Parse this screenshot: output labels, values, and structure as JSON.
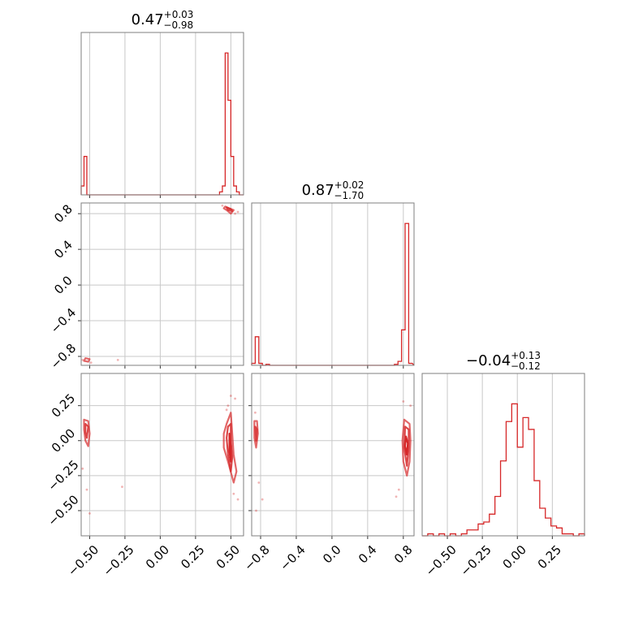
{
  "chart_data": {
    "type": "corner",
    "line_color": "#d62728",
    "grid": true,
    "parameters": [
      {
        "title": {
          "median": "0.47",
          "plus": "+0.03",
          "minus": "−0.98"
        },
        "range": [
          -0.56,
          0.59
        ],
        "ticks": [
          -0.5,
          -0.25,
          0.0,
          0.25,
          0.5
        ],
        "tick_labels": [
          "−0.50",
          "−0.25",
          "0.00",
          "0.25",
          "0.50"
        ],
        "hist": {
          "bins": [
            [
              -0.56,
              0.03
            ],
            [
              -0.54,
              0.13
            ],
            [
              -0.52,
              0.0
            ],
            [
              -0.5,
              0.0
            ],
            [
              -0.48,
              0.0
            ],
            [
              -0.46,
              0.0
            ],
            [
              -0.44,
              0.0
            ],
            [
              -0.42,
              0.0
            ],
            [
              -0.4,
              0.0
            ],
            [
              -0.38,
              0.0
            ],
            [
              -0.36,
              0.0
            ],
            [
              -0.34,
              0.0
            ],
            [
              -0.32,
              0.0
            ],
            [
              -0.3,
              0.0
            ],
            [
              -0.28,
              0.0
            ],
            [
              -0.26,
              0.0
            ],
            [
              -0.24,
              0.0
            ],
            [
              -0.22,
              0.0
            ],
            [
              -0.2,
              0.0
            ],
            [
              -0.18,
              0.0
            ],
            [
              -0.16,
              0.0
            ],
            [
              -0.14,
              0.0
            ],
            [
              -0.12,
              0.0
            ],
            [
              -0.1,
              0.0
            ],
            [
              -0.08,
              0.0
            ],
            [
              -0.06,
              0.0
            ],
            [
              -0.04,
              0.0
            ],
            [
              -0.02,
              0.0
            ],
            [
              0.0,
              0.0
            ],
            [
              0.02,
              0.0
            ],
            [
              0.04,
              0.0
            ],
            [
              0.06,
              0.0
            ],
            [
              0.08,
              0.0
            ],
            [
              0.1,
              0.0
            ],
            [
              0.12,
              0.0
            ],
            [
              0.14,
              0.0
            ],
            [
              0.16,
              0.0
            ],
            [
              0.18,
              0.0
            ],
            [
              0.2,
              0.0
            ],
            [
              0.22,
              0.0
            ],
            [
              0.24,
              0.0
            ],
            [
              0.26,
              0.0
            ],
            [
              0.28,
              0.0
            ],
            [
              0.3,
              0.0
            ],
            [
              0.32,
              0.0
            ],
            [
              0.34,
              0.0
            ],
            [
              0.36,
              0.0
            ],
            [
              0.38,
              0.0
            ],
            [
              0.4,
              0.0
            ],
            [
              0.42,
              0.01
            ],
            [
              0.44,
              0.03
            ],
            [
              0.46,
              0.48
            ],
            [
              0.48,
              0.32
            ],
            [
              0.5,
              0.13
            ],
            [
              0.52,
              0.03
            ],
            [
              0.54,
              0.01
            ],
            [
              0.56,
              0.0
            ],
            [
              0.58,
              0.0
            ]
          ],
          "bin_width": 0.02,
          "ymax": 0.5
        }
      },
      {
        "title": {
          "median": "0.87",
          "plus": "+0.02",
          "minus": "−1.70"
        },
        "range": [
          -0.9,
          0.92
        ],
        "ticks": [
          -0.8,
          -0.4,
          0.0,
          0.4,
          0.8
        ],
        "tick_labels": [
          "−0.8",
          "−0.4",
          "0.0",
          "0.4",
          "0.8"
        ],
        "hist": {
          "bins": [
            [
              -0.9,
              0.02
            ],
            [
              -0.86,
              0.29
            ],
            [
              -0.82,
              0.02
            ],
            [
              -0.78,
              0.0
            ],
            [
              -0.74,
              0.01
            ],
            [
              -0.7,
              0.0
            ],
            [
              -0.66,
              0.0
            ],
            [
              -0.62,
              0.0
            ],
            [
              -0.58,
              0.0
            ],
            [
              -0.54,
              0.0
            ],
            [
              -0.5,
              0.0
            ],
            [
              -0.46,
              0.0
            ],
            [
              -0.42,
              0.0
            ],
            [
              -0.38,
              0.0
            ],
            [
              -0.34,
              0.0
            ],
            [
              -0.3,
              0.0
            ],
            [
              -0.26,
              0.0
            ],
            [
              -0.22,
              0.0
            ],
            [
              -0.18,
              0.0
            ],
            [
              -0.14,
              0.0
            ],
            [
              -0.1,
              0.0
            ],
            [
              -0.06,
              0.0
            ],
            [
              -0.02,
              0.0
            ],
            [
              0.02,
              0.0
            ],
            [
              0.06,
              0.0
            ],
            [
              0.1,
              0.0
            ],
            [
              0.14,
              0.0
            ],
            [
              0.18,
              0.0
            ],
            [
              0.22,
              0.0
            ],
            [
              0.26,
              0.0
            ],
            [
              0.3,
              0.0
            ],
            [
              0.34,
              0.0
            ],
            [
              0.38,
              0.0
            ],
            [
              0.42,
              0.0
            ],
            [
              0.46,
              0.0
            ],
            [
              0.5,
              0.0
            ],
            [
              0.54,
              0.0
            ],
            [
              0.58,
              0.0
            ],
            [
              0.62,
              0.0
            ],
            [
              0.66,
              0.0
            ],
            [
              0.7,
              0.01
            ],
            [
              0.74,
              0.04
            ],
            [
              0.78,
              0.36
            ],
            [
              0.82,
              1.44
            ],
            [
              0.86,
              0.02
            ]
          ],
          "bin_width": 0.04,
          "ymax": 1.5
        }
      },
      {
        "title": {
          "median": "−0.04",
          "plus": "+0.13",
          "minus": "−0.12"
        },
        "range": [
          -0.68,
          0.48
        ],
        "ticks": [
          -0.5,
          -0.25,
          0.0,
          0.25
        ],
        "tick_labels": [
          "−0.50",
          "−0.25",
          "0.00",
          "0.25"
        ],
        "hist": {
          "bins": [
            [
              -0.68,
              0.0
            ],
            [
              -0.64,
              0.01
            ],
            [
              -0.6,
              0.0
            ],
            [
              -0.56,
              0.01
            ],
            [
              -0.52,
              0.0
            ],
            [
              -0.48,
              0.01
            ],
            [
              -0.44,
              0.0
            ],
            [
              -0.4,
              0.01
            ],
            [
              -0.36,
              0.03
            ],
            [
              -0.32,
              0.03
            ],
            [
              -0.28,
              0.06
            ],
            [
              -0.24,
              0.07
            ],
            [
              -0.2,
              0.11
            ],
            [
              -0.16,
              0.2
            ],
            [
              -0.12,
              0.38
            ],
            [
              -0.08,
              0.58
            ],
            [
              -0.04,
              0.67
            ],
            [
              0.0,
              0.45
            ],
            [
              0.04,
              0.6
            ],
            [
              0.08,
              0.54
            ],
            [
              0.12,
              0.28
            ],
            [
              0.16,
              0.14
            ],
            [
              0.2,
              0.09
            ],
            [
              0.24,
              0.05
            ],
            [
              0.28,
              0.04
            ],
            [
              0.32,
              0.01
            ],
            [
              0.36,
              0.01
            ],
            [
              0.4,
              0.0
            ],
            [
              0.44,
              0.01
            ]
          ],
          "bin_width": 0.04,
          "ymax": 0.75
        }
      }
    ],
    "pairs": [
      {
        "x_param": 0,
        "y_param": 1,
        "contours": [
          {
            "level": 1,
            "points": [
              [
                0.46,
                0.88
              ],
              [
                0.49,
                0.86
              ],
              [
                0.52,
                0.84
              ],
              [
                0.5,
                0.8
              ],
              [
                0.47,
                0.84
              ],
              [
                0.45,
                0.86
              ]
            ]
          },
          {
            "level": 2,
            "points": [
              [
                0.47,
                0.87
              ],
              [
                0.5,
                0.85
              ],
              [
                0.51,
                0.83
              ],
              [
                0.48,
                0.84
              ]
            ]
          },
          {
            "level": 1,
            "points": [
              [
                -0.53,
                -0.82
              ],
              [
                -0.5,
                -0.83
              ],
              [
                -0.51,
                -0.86
              ],
              [
                -0.54,
                -0.85
              ]
            ]
          }
        ],
        "scatter": [
          [
            0.44,
            0.89
          ],
          [
            0.53,
            0.8
          ],
          [
            0.55,
            0.82
          ],
          [
            -0.55,
            -0.84
          ],
          [
            -0.3,
            -0.84
          ],
          [
            -0.49,
            -0.87
          ]
        ]
      },
      {
        "x_param": 0,
        "y_param": 2,
        "contours": [
          {
            "level": 1,
            "points": [
              [
                -0.54,
                0.15
              ],
              [
                -0.51,
                0.14
              ],
              [
                -0.5,
                0.05
              ],
              [
                -0.51,
                -0.04
              ],
              [
                -0.53,
                0.0
              ],
              [
                -0.54,
                0.08
              ]
            ]
          },
          {
            "level": 2,
            "points": [
              [
                -0.53,
                0.12
              ],
              [
                -0.51,
                0.1
              ],
              [
                -0.52,
                0.02
              ],
              [
                -0.53,
                0.06
              ]
            ]
          },
          {
            "level": 1,
            "points": [
              [
                0.47,
                0.12
              ],
              [
                0.5,
                0.2
              ],
              [
                0.51,
                0.05
              ],
              [
                0.52,
                -0.1
              ],
              [
                0.54,
                -0.22
              ],
              [
                0.52,
                -0.3
              ],
              [
                0.48,
                -0.15
              ],
              [
                0.45,
                -0.05
              ],
              [
                0.45,
                0.05
              ]
            ]
          },
          {
            "level": 2,
            "points": [
              [
                0.48,
                0.1
              ],
              [
                0.5,
                0.12
              ],
              [
                0.5,
                0.0
              ],
              [
                0.51,
                -0.12
              ],
              [
                0.5,
                -0.22
              ],
              [
                0.48,
                -0.1
              ],
              [
                0.47,
                0.02
              ]
            ]
          },
          {
            "level": 3,
            "points": [
              [
                0.49,
                0.05
              ],
              [
                0.5,
                -0.05
              ],
              [
                0.5,
                -0.15
              ],
              [
                0.49,
                -0.08
              ]
            ]
          }
        ],
        "scatter": [
          [
            0.5,
            0.32
          ],
          [
            0.48,
            0.25
          ],
          [
            0.52,
            -0.38
          ],
          [
            0.55,
            -0.42
          ],
          [
            -0.55,
            -0.2
          ],
          [
            -0.52,
            -0.35
          ],
          [
            -0.5,
            -0.52
          ],
          [
            -0.27,
            -0.33
          ],
          [
            0.47,
            0.22
          ],
          [
            0.53,
            0.3
          ]
        ]
      },
      {
        "x_param": 1,
        "y_param": 2,
        "contours": [
          {
            "level": 1,
            "points": [
              [
                -0.87,
                0.14
              ],
              [
                -0.84,
                0.14
              ],
              [
                -0.83,
                0.05
              ],
              [
                -0.85,
                -0.05
              ],
              [
                -0.87,
                0.02
              ]
            ]
          },
          {
            "level": 2,
            "points": [
              [
                -0.86,
                0.1
              ],
              [
                -0.84,
                0.08
              ],
              [
                -0.85,
                0.0
              ]
            ]
          },
          {
            "level": 1,
            "points": [
              [
                0.81,
                0.15
              ],
              [
                0.87,
                0.12
              ],
              [
                0.88,
                0.0
              ],
              [
                0.87,
                -0.15
              ],
              [
                0.84,
                -0.25
              ],
              [
                0.8,
                -0.15
              ],
              [
                0.79,
                0.0
              ]
            ]
          },
          {
            "level": 2,
            "points": [
              [
                0.82,
                0.1
              ],
              [
                0.86,
                0.08
              ],
              [
                0.86,
                -0.05
              ],
              [
                0.84,
                -0.18
              ],
              [
                0.81,
                -0.05
              ]
            ]
          },
          {
            "level": 3,
            "points": [
              [
                0.83,
                0.03
              ],
              [
                0.85,
                -0.02
              ],
              [
                0.84,
                -0.1
              ],
              [
                0.82,
                -0.04
              ]
            ]
          }
        ],
        "scatter": [
          [
            -0.82,
            -0.3
          ],
          [
            -0.78,
            -0.42
          ],
          [
            -0.85,
            -0.5
          ],
          [
            0.75,
            -0.35
          ],
          [
            0.72,
            -0.4
          ],
          [
            0.88,
            0.25
          ],
          [
            0.8,
            0.28
          ],
          [
            -0.86,
            0.2
          ]
        ]
      }
    ]
  }
}
